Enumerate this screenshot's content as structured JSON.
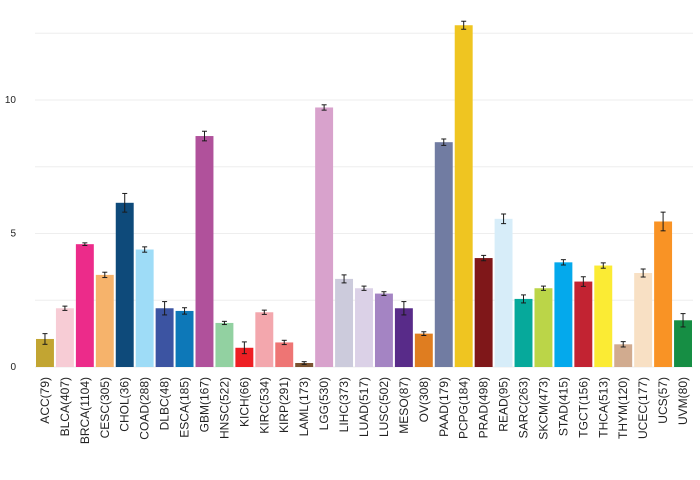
{
  "chart_data": {
    "type": "bar",
    "title": "",
    "xlabel": "",
    "ylabel": "",
    "ylim": [
      0,
      13.2
    ],
    "yticks": [
      0,
      5,
      10
    ],
    "grid": true,
    "categories": [
      "ACC(79)",
      "BLCA(407)",
      "BRCA(1104)",
      "CESC(305)",
      "CHOL(36)",
      "COAD(288)",
      "DLBC(48)",
      "ESCA(185)",
      "GBM(167)",
      "HNSC(522)",
      "KICH(66)",
      "KIRC(534)",
      "KIRP(291)",
      "LAML(173)",
      "LGG(530)",
      "LIHC(373)",
      "LUAD(517)",
      "LUSC(502)",
      "MESO(87)",
      "OV(308)",
      "PAAD(179)",
      "PCPG(184)",
      "PRAD(498)",
      "READ(95)",
      "SARC(263)",
      "SKCM(473)",
      "STAD(415)",
      "TGCT(156)",
      "THCA(513)",
      "THYM(120)",
      "UCEC(177)",
      "UCS(57)",
      "UVM(80)"
    ],
    "values": [
      1.05,
      2.2,
      4.6,
      3.45,
      6.15,
      4.4,
      2.2,
      2.1,
      8.65,
      1.65,
      0.72,
      2.05,
      0.92,
      0.15,
      9.72,
      3.3,
      2.95,
      2.75,
      2.2,
      1.25,
      8.42,
      12.8,
      4.08,
      5.55,
      2.55,
      2.95,
      3.92,
      3.2,
      3.8,
      0.85,
      3.52,
      5.45,
      1.75
    ],
    "errors": [
      0.2,
      0.08,
      0.05,
      0.1,
      0.35,
      0.1,
      0.25,
      0.12,
      0.18,
      0.06,
      0.22,
      0.08,
      0.08,
      0.05,
      0.1,
      0.15,
      0.08,
      0.07,
      0.25,
      0.07,
      0.12,
      0.15,
      0.1,
      0.18,
      0.15,
      0.08,
      0.1,
      0.18,
      0.1,
      0.1,
      0.15,
      0.35,
      0.25
    ],
    "colors": [
      "#c2a532",
      "#f7ccd5",
      "#ec2b8a",
      "#f6b36b",
      "#0e4a7a",
      "#9edcf7",
      "#3c54a2",
      "#0d78b8",
      "#b0519b",
      "#92d1a1",
      "#ee1f24",
      "#f3a7ad",
      "#ee7574",
      "#7a5230",
      "#d8a2cc",
      "#cccbdc",
      "#dbd1e7",
      "#a484c3",
      "#582b89",
      "#df7d20",
      "#717ca2",
      "#efc521",
      "#7f1719",
      "#d7edf9",
      "#06a99b",
      "#bbd548",
      "#04a9ec",
      "#c22332",
      "#fbeb34",
      "#d1ab8f",
      "#f8e0c4",
      "#f99325",
      "#168e44"
    ]
  }
}
